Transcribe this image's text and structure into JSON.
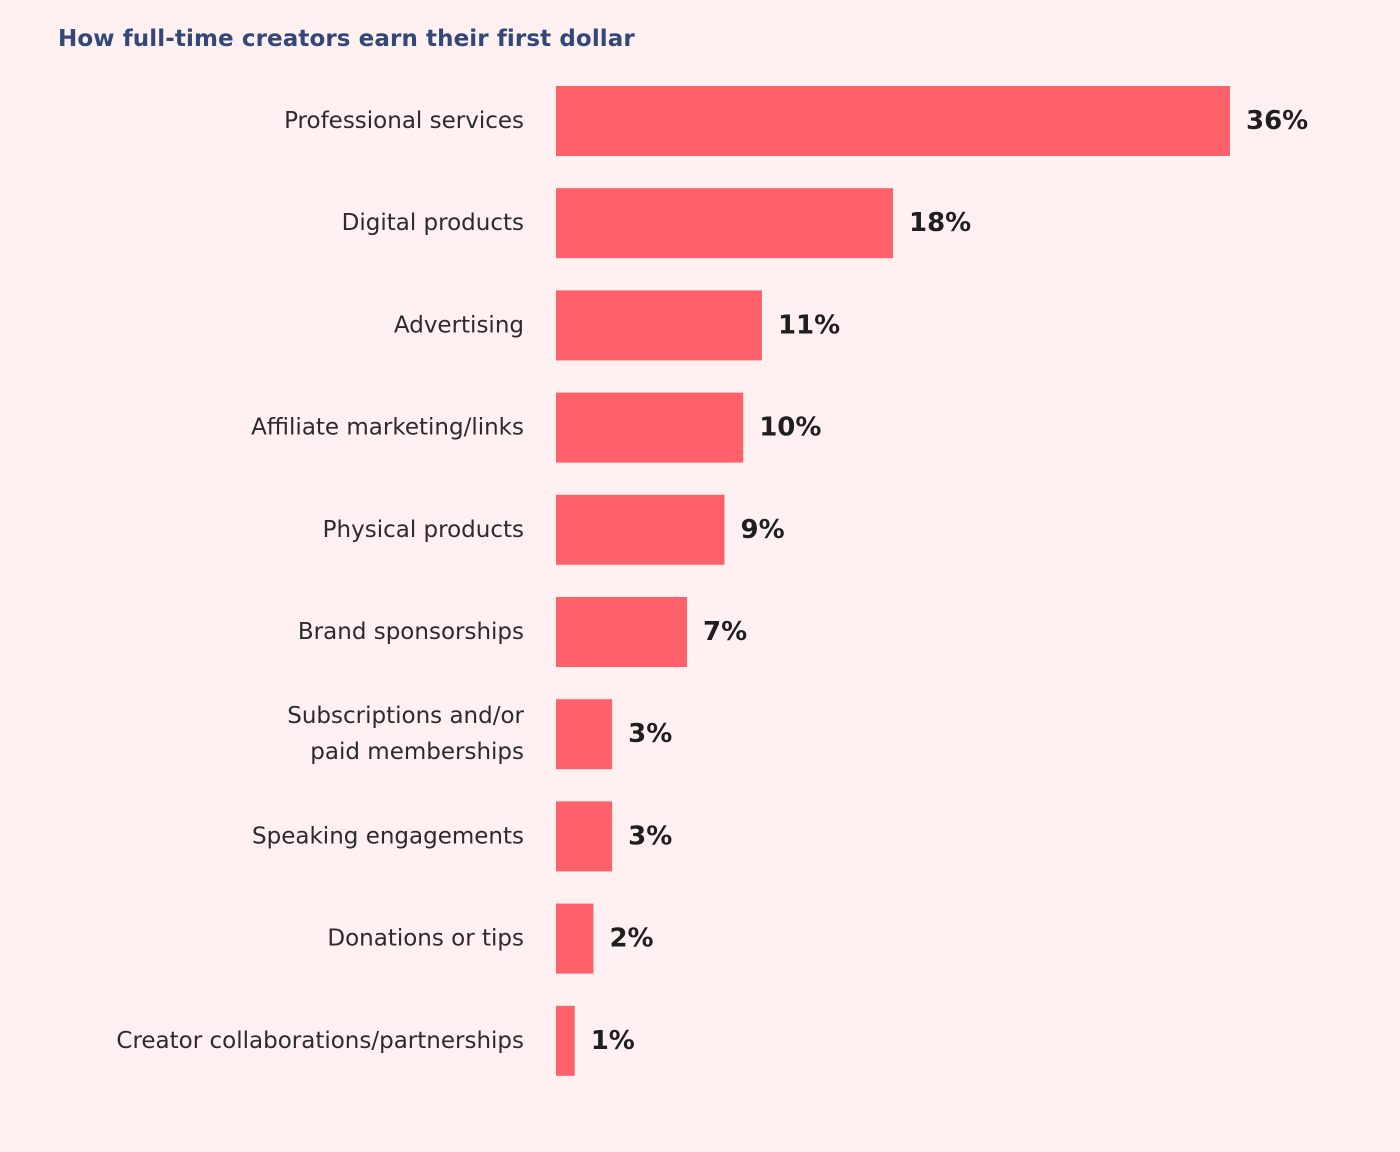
{
  "colors": {
    "background": "#fff0f1",
    "bar": "#ff616b",
    "title": "#33477a",
    "label": "#2b2b2b",
    "value": "#1f1f1f"
  },
  "chart_data": {
    "type": "bar",
    "orientation": "horizontal",
    "title": "How full-time creators earn their first dollar",
    "xlabel": "",
    "ylabel": "",
    "unit": "%",
    "grid": false,
    "legend": "none",
    "categories": [
      "Professional services",
      "Digital products",
      "Advertising",
      "Affiliate marketing/links",
      "Physical products",
      "Brand sponsorships",
      "Subscriptions and/or paid memberships",
      "Speaking engagements",
      "Donations or tips",
      "Creator collaborations/partnerships"
    ],
    "category_lines": [
      [
        "Professional services"
      ],
      [
        "Digital products"
      ],
      [
        "Advertising"
      ],
      [
        "Affiliate marketing/links"
      ],
      [
        "Physical products"
      ],
      [
        "Brand sponsorships"
      ],
      [
        "Subscriptions and/or",
        "paid memberships"
      ],
      [
        "Speaking engagements"
      ],
      [
        "Donations or tips"
      ],
      [
        "Creator collaborations/partnerships"
      ]
    ],
    "values": [
      36,
      18,
      11,
      10,
      9,
      7,
      3,
      3,
      2,
      1
    ],
    "data_labels": [
      "36%",
      "18%",
      "11%",
      "10%",
      "9%",
      "7%",
      "3%",
      "3%",
      "2%",
      "1%"
    ],
    "xlim": [
      0,
      36
    ]
  }
}
